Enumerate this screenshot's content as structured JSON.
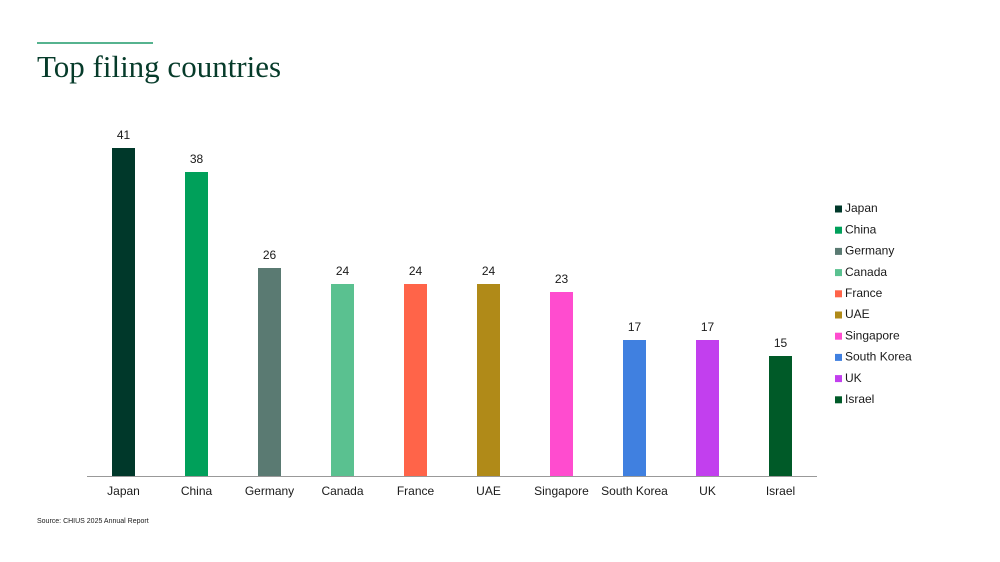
{
  "chart_data": {
    "type": "bar",
    "title": "Top filing countries",
    "categories": [
      "Japan",
      "China",
      "Germany",
      "Canada",
      "France",
      "UAE",
      "Singapore",
      "South Korea",
      "UK",
      "Israel"
    ],
    "values": [
      41,
      38,
      26,
      24,
      24,
      24,
      23,
      17,
      17,
      15
    ],
    "colors": [
      "#00382a",
      "#00a05a",
      "#5a7a72",
      "#5ac190",
      "#ff6449",
      "#b08a18",
      "#ff4ccf",
      "#4080e0",
      "#c23fee",
      "#005a28"
    ],
    "legend": "right",
    "source": "Source: CHIUS 2025 Annual Report"
  }
}
